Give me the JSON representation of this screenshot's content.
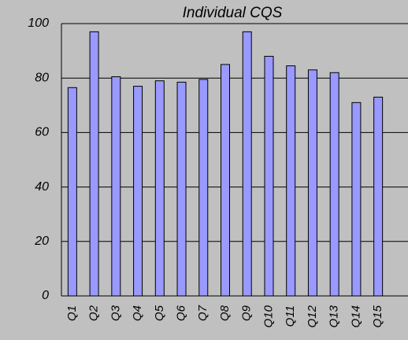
{
  "chart_data": {
    "type": "bar",
    "title": "Individual CQS",
    "categories": [
      "Q1",
      "Q2",
      "Q3",
      "Q4",
      "Q5",
      "Q6",
      "Q7",
      "Q8",
      "Q9",
      "Q10",
      "Q11",
      "Q12",
      "Q13",
      "Q14",
      "Q15"
    ],
    "values": [
      76.5,
      97,
      80.5,
      77,
      79,
      78.5,
      79.5,
      85,
      97,
      88,
      84.5,
      83,
      82,
      71,
      73
    ],
    "color": "#9999ff",
    "ylim": [
      0,
      100
    ],
    "yticks": [
      0,
      20,
      40,
      60,
      80,
      100
    ],
    "grid": true
  }
}
